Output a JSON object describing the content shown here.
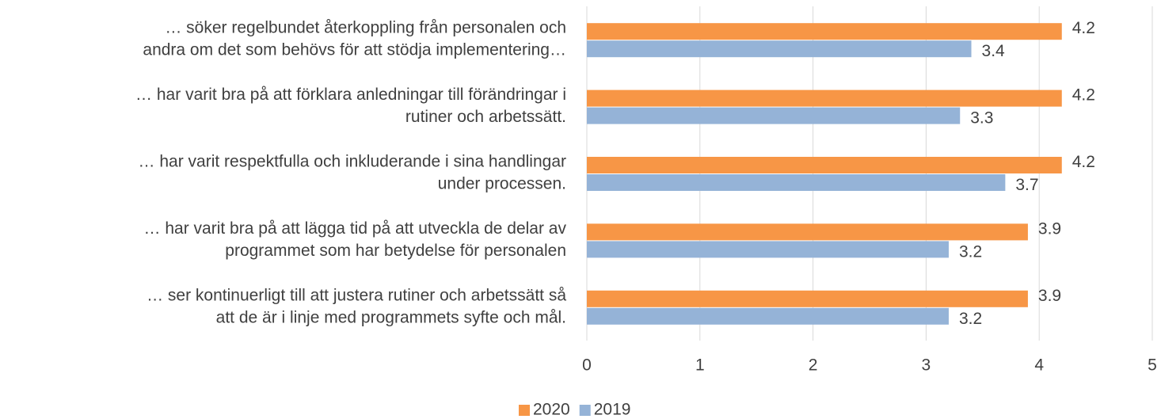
{
  "chart_data": {
    "type": "bar",
    "orientation": "horizontal",
    "categories": [
      [
        "… söker regelbundet återkoppling från personalen och",
        "andra om det som behövs för att stödja implementering…"
      ],
      [
        "… har varit bra på att förklara anledningar till förändringar i",
        "rutiner och arbetssätt."
      ],
      [
        "… har varit respektfulla och inkluderande i sina handlingar",
        "under processen."
      ],
      [
        "… har varit bra på att lägga tid på att utveckla de delar av",
        "programmet som har betydelse för personalen"
      ],
      [
        "… ser kontinuerligt till att justera rutiner och arbetssätt så",
        "att de är i linje med programmets syfte och mål."
      ]
    ],
    "series": [
      {
        "name": "2020",
        "color": "#f79646",
        "values": [
          4.2,
          4.2,
          4.2,
          3.9,
          3.9
        ]
      },
      {
        "name": "2019",
        "color": "#95b3d7",
        "values": [
          3.4,
          3.3,
          3.7,
          3.2,
          3.2
        ]
      }
    ],
    "xlim": [
      0,
      5
    ],
    "xticks": [
      0,
      1,
      2,
      3,
      4,
      5
    ],
    "grid": true,
    "legend": "bottom"
  }
}
